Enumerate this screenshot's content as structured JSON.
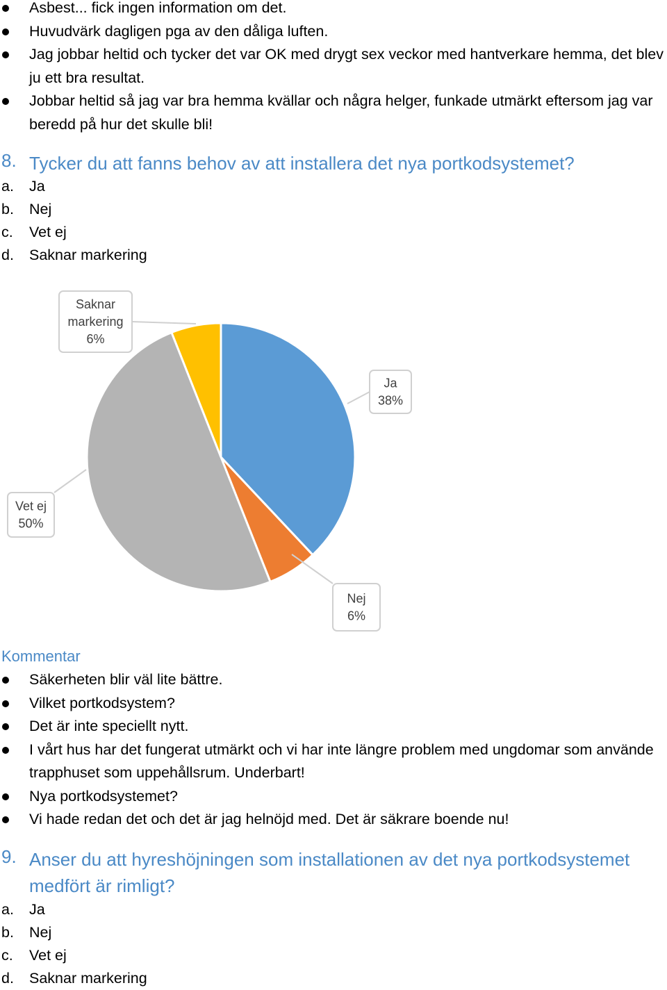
{
  "top_comments": [
    "Asbest... fick ingen information om det.",
    "Huvudvärk dagligen pga av den dåliga luften.",
    "Jag jobbar heltid och tycker det var OK med drygt sex veckor med hantverkare hemma, det blev ju ett bra resultat.",
    "Jobbar heltid så jag var bra hemma kvällar och några helger, funkade utmärkt eftersom jag var beredd på hur det skulle bli!"
  ],
  "question8": {
    "number": "8.",
    "text": "Tycker du att fanns behov av att installera det nya portkodsystemet?",
    "options": [
      {
        "letter": "a.",
        "label": "Ja"
      },
      {
        "letter": "b.",
        "label": "Nej"
      },
      {
        "letter": "c.",
        "label": "Vet ej"
      },
      {
        "letter": "d.",
        "label": "Saknar markering"
      }
    ]
  },
  "chart_data": {
    "type": "pie",
    "slices": [
      {
        "label": "Ja",
        "value": 38,
        "display": "38%",
        "color": "#5b9bd5"
      },
      {
        "label": "Nej",
        "value": 6,
        "display": "6%",
        "color": "#ed7d31"
      },
      {
        "label": "Vet ej",
        "value": 50,
        "display": "50%",
        "color": "#b4b4b4"
      },
      {
        "label": "Saknar markering",
        "value": 6,
        "display": "6%",
        "color": "#ffc000"
      }
    ]
  },
  "kommentar": {
    "heading": "Kommentar",
    "items": [
      "Säkerheten blir väl lite bättre.",
      "Vilket portkodsystem?",
      "Det är inte speciellt nytt.",
      "I vårt hus har det fungerat utmärkt och vi har inte längre problem med ungdomar som använde trapphuset som uppehållsrum. Underbart!",
      "Nya portkodsystemet?",
      "Vi hade redan det och det är jag helnöjd med. Det är säkrare boende nu!"
    ]
  },
  "question9": {
    "number": "9.",
    "text": "Anser du att hyreshöjningen som installationen av det nya portkodsystemet medfört är rimligt?",
    "options": [
      {
        "letter": "a.",
        "label": "Ja"
      },
      {
        "letter": "b.",
        "label": "Nej"
      },
      {
        "letter": "c.",
        "label": "Vet ej"
      },
      {
        "letter": "d.",
        "label": "Saknar markering"
      }
    ]
  }
}
